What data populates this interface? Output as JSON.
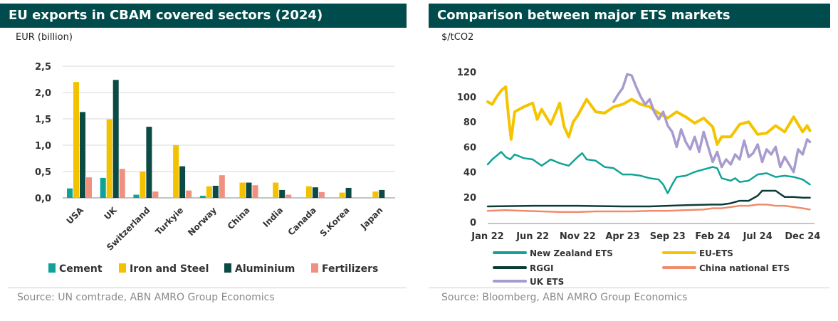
{
  "left": {
    "title": "EU exports in CBAM covered sectors (2024)",
    "unit": "EUR (billion)",
    "source": "Source: UN comtrade, ABN AMRO Group Economics"
  },
  "right": {
    "title": "Comparison between major ETS markets",
    "unit": "$/tCO2",
    "source": "Source: Bloomberg, ABN AMRO Group Economics"
  },
  "chart_data": [
    {
      "type": "bar",
      "title": "EU exports in CBAM covered sectors (2024)",
      "ylabel": "EUR (billion)",
      "ylim": [
        0,
        2.5
      ],
      "yticks": [
        "0,0",
        "0,5",
        "1,0",
        "1,5",
        "2,0",
        "2,5"
      ],
      "categories": [
        "USA",
        "UK",
        "Switzerland",
        "Turkyie",
        "Norway",
        "China",
        "India",
        "Canada",
        "S.Korea",
        "Japan"
      ],
      "series": [
        {
          "name": "Cement",
          "color": "#0FA398",
          "values": [
            0.18,
            0.38,
            0.06,
            0.0,
            0.04,
            0.0,
            0.0,
            0.0,
            0.0,
            0.0
          ]
        },
        {
          "name": "Iron and Steel",
          "color": "#F2C200",
          "values": [
            2.2,
            1.49,
            0.5,
            1.0,
            0.22,
            0.29,
            0.29,
            0.22,
            0.1,
            0.12
          ]
        },
        {
          "name": "Aluminium",
          "color": "#0B4A45",
          "values": [
            1.63,
            2.24,
            1.35,
            0.6,
            0.23,
            0.29,
            0.15,
            0.2,
            0.19,
            0.15
          ]
        },
        {
          "name": "Fertilizers",
          "color": "#F09080",
          "values": [
            0.39,
            0.55,
            0.12,
            0.14,
            0.43,
            0.24,
            0.06,
            0.11,
            0.0,
            0.0
          ]
        }
      ],
      "legend": "bottom"
    },
    {
      "type": "line",
      "title": "Comparison between major ETS markets",
      "ylabel": "$/tCO2",
      "ylim": [
        0,
        125
      ],
      "yticks": [
        0,
        20,
        40,
        60,
        80,
        100,
        120
      ],
      "xlim": [
        0,
        36
      ],
      "xticks": [
        {
          "label": "Jan 22",
          "x": 0
        },
        {
          "label": "Jun 22",
          "x": 5
        },
        {
          "label": "Nov 22",
          "x": 10
        },
        {
          "label": "Apr 23",
          "x": 15
        },
        {
          "label": "Sep 23",
          "x": 20
        },
        {
          "label": "Feb 24",
          "x": 25
        },
        {
          "label": "Jul 24",
          "x": 30
        },
        {
          "label": "Dec 24",
          "x": 35
        }
      ],
      "series": [
        {
          "name": "New Zealand ETS",
          "color": "#12A396",
          "width": 2.5,
          "x": [
            0,
            0.5,
            1,
            1.5,
            2,
            2.5,
            3,
            4,
            5,
            6,
            7,
            8,
            9,
            10,
            10.5,
            11,
            12,
            13,
            14,
            15,
            16,
            17,
            18,
            19,
            19.5,
            20,
            20.5,
            21,
            22,
            23,
            24,
            25,
            25.5,
            26,
            27,
            27.5,
            28,
            29,
            30,
            31,
            32,
            33,
            34,
            35,
            35.8
          ],
          "y": [
            46,
            50,
            53,
            56,
            52,
            50,
            54,
            51,
            50,
            45,
            50,
            47,
            45,
            52,
            55,
            50,
            49,
            44,
            43,
            38,
            38,
            37,
            35,
            34,
            30,
            23,
            30,
            36,
            37,
            40,
            42,
            44,
            43,
            35,
            33,
            35,
            32,
            33,
            38,
            39,
            36,
            37,
            36,
            34,
            30
          ]
        },
        {
          "name": "EU-ETS",
          "color": "#F5C400",
          "width": 4,
          "x": [
            0,
            0.5,
            1,
            1.5,
            2,
            2.3,
            2.6,
            3,
            4,
            5,
            5.5,
            6,
            7,
            8,
            8.5,
            9,
            9.5,
            10,
            11,
            12,
            13,
            14,
            15,
            16,
            16.5,
            17,
            18,
            19,
            20,
            21,
            22,
            23,
            24,
            25,
            25.5,
            26,
            27,
            28,
            29,
            30,
            31,
            32,
            33,
            34,
            35,
            35.5,
            35.8
          ],
          "y": [
            96,
            94,
            100,
            105,
            108,
            85,
            66,
            88,
            92,
            95,
            82,
            90,
            78,
            95,
            76,
            68,
            80,
            85,
            98,
            88,
            87,
            92,
            94,
            98,
            96,
            94,
            92,
            87,
            83,
            88,
            84,
            79,
            83,
            76,
            62,
            68,
            68,
            78,
            80,
            70,
            71,
            77,
            72,
            84,
            72,
            77,
            73
          ]
        },
        {
          "name": "RGGI",
          "color": "#0B3D38",
          "width": 2.5,
          "x": [
            0,
            5,
            10,
            12,
            15,
            18,
            20,
            22,
            25,
            26,
            27,
            28,
            29,
            30,
            30.5,
            31,
            32,
            33,
            34,
            35,
            35.8
          ],
          "y": [
            12.5,
            13,
            13,
            12.8,
            12.5,
            12.5,
            13,
            13.5,
            14,
            14,
            15,
            17,
            17,
            21,
            25,
            25,
            25,
            20,
            20,
            19.5,
            19.5
          ]
        },
        {
          "name": "China national ETS",
          "color": "#F08C6C",
          "width": 2.5,
          "x": [
            0,
            2,
            4,
            6,
            8,
            10,
            12,
            14,
            16,
            18,
            20,
            22,
            24,
            25,
            26,
            27,
            28,
            29,
            30,
            31,
            32,
            33,
            34,
            35,
            35.8
          ],
          "y": [
            9,
            9.5,
            9,
            8.5,
            8,
            8,
            8.5,
            8.5,
            8.5,
            9,
            9,
            9.5,
            10,
            11,
            11,
            12,
            13,
            13,
            14,
            14,
            13,
            13,
            12,
            11,
            10
          ]
        },
        {
          "name": "UK ETS",
          "color": "#A89BCF",
          "width": 3.5,
          "x": [
            14,
            14.5,
            15,
            15.5,
            16,
            16.5,
            17,
            17.5,
            18,
            18.5,
            19,
            19.5,
            20,
            20.5,
            21,
            21.5,
            22,
            22.5,
            23,
            23.5,
            24,
            24.5,
            25,
            25.5,
            26,
            26.5,
            27,
            27.5,
            28,
            28.5,
            29,
            29.5,
            30,
            30.5,
            31,
            31.5,
            32,
            32.5,
            33,
            33.5,
            34,
            34.5,
            35,
            35.5,
            35.8
          ],
          "y": [
            96,
            102,
            107,
            118,
            117,
            108,
            100,
            94,
            98,
            88,
            82,
            88,
            77,
            72,
            60,
            74,
            64,
            58,
            68,
            56,
            72,
            60,
            48,
            56,
            44,
            50,
            46,
            54,
            50,
            65,
            52,
            55,
            62,
            48,
            58,
            54,
            60,
            44,
            52,
            46,
            40,
            58,
            54,
            66,
            64
          ]
        }
      ],
      "legend": "bottom"
    }
  ]
}
